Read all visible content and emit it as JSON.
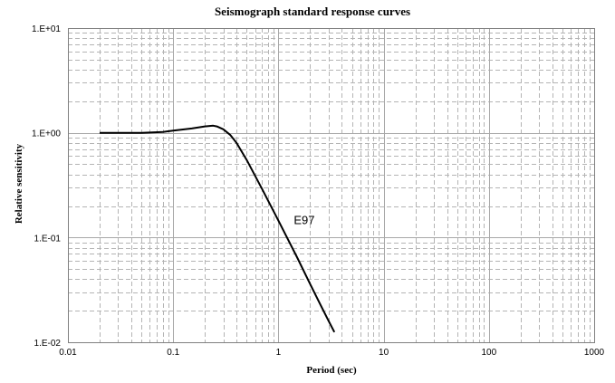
{
  "chart_data": {
    "type": "line",
    "title": "Seismograph standard response curves",
    "xlabel": "Period (sec)",
    "ylabel": "Relative sensitivity",
    "x_scale": "log",
    "y_scale": "log",
    "xlim": [
      0.01,
      1000
    ],
    "ylim": [
      0.01,
      10
    ],
    "x_ticks": [
      {
        "value": 0.01,
        "label": "0.01"
      },
      {
        "value": 0.1,
        "label": "0.1"
      },
      {
        "value": 1,
        "label": "1"
      },
      {
        "value": 10,
        "label": "10"
      },
      {
        "value": 100,
        "label": "100"
      },
      {
        "value": 1000,
        "label": "1000"
      }
    ],
    "y_ticks": [
      {
        "value": 0.01,
        "label": "1.E-02"
      },
      {
        "value": 0.1,
        "label": "1.E-01"
      },
      {
        "value": 1,
        "label": "1.E+00"
      },
      {
        "value": 10,
        "label": "1.E+01"
      }
    ],
    "grid": true,
    "legend": "none",
    "colors": {
      "line": "#000000",
      "major_grid": "#a8a8a8",
      "minor_grid": "#b4b4b4"
    },
    "series": [
      {
        "x": [
          0.02,
          0.03,
          0.05,
          0.08,
          0.1,
          0.15,
          0.2,
          0.24,
          0.26,
          0.3,
          0.35,
          0.4,
          0.5,
          0.7,
          1.0,
          1.5,
          2.0,
          2.5,
          3.0,
          3.4
        ],
        "y": [
          1.0,
          1.0,
          1.0,
          1.02,
          1.05,
          1.1,
          1.15,
          1.17,
          1.15,
          1.08,
          0.95,
          0.8,
          0.55,
          0.29,
          0.145,
          0.065,
          0.036,
          0.023,
          0.016,
          0.0125
        ]
      }
    ],
    "annotations": [
      {
        "text": "E97",
        "x": 1.4,
        "y": 0.135
      }
    ]
  }
}
